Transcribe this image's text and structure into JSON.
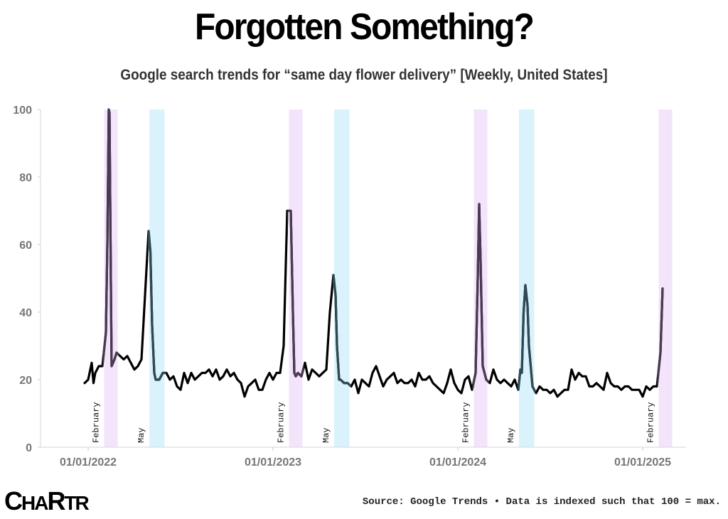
{
  "header": {
    "title": "Forgotten Something?",
    "subtitle": "Google search trends for “same day flower delivery” [Weekly, United States]"
  },
  "footer": {
    "logo_big_a": "C",
    "logo_mid": "HA",
    "logo_big_b": "R",
    "logo_end": "TR",
    "source": "Source: Google Trends • Data is indexed such that 100 = max."
  },
  "colors": {
    "line": "#000000",
    "valentine_band": "#f3e3fb",
    "mothers_day_band": "#d9f2fb",
    "valentine_line": "#4a3a52",
    "mothers_day_line": "#2f4a55",
    "axis_text": "#777777"
  },
  "chart_data": {
    "type": "line",
    "ylim": [
      0,
      100
    ],
    "yticks": [
      0,
      20,
      40,
      60,
      80,
      100
    ],
    "xticks": [
      {
        "label": "01/01/2022",
        "week": 0
      },
      {
        "label": "01/01/2023",
        "week": 52
      },
      {
        "label": "01/01/2024",
        "week": 104
      },
      {
        "label": "01/01/2025",
        "week": 156
      }
    ],
    "bands": [
      {
        "label": "February",
        "type": "valentine",
        "start_week": 4.5,
        "end_week": 8.3
      },
      {
        "label": "May",
        "type": "mothers_day",
        "start_week": 17.2,
        "end_week": 21.5
      },
      {
        "label": "February",
        "type": "valentine",
        "start_week": 56.5,
        "end_week": 60.3
      },
      {
        "label": "May",
        "type": "mothers_day",
        "start_week": 69.2,
        "end_week": 73.5
      },
      {
        "label": "February",
        "type": "valentine",
        "start_week": 108.5,
        "end_week": 112.3
      },
      {
        "label": "May",
        "type": "mothers_day",
        "start_week": 121.2,
        "end_week": 125.5
      },
      {
        "label": "February",
        "type": "valentine",
        "start_week": 160.5,
        "end_week": 164.3
      }
    ],
    "series": [
      {
        "x": [
          -1,
          0,
          1,
          1.5,
          2,
          3,
          4,
          5,
          5.4,
          5.8,
          6,
          6.3,
          6.6,
          7,
          7.4,
          8,
          9,
          10,
          11,
          12,
          13,
          14,
          15,
          16,
          17,
          17.5,
          18,
          18.6,
          19,
          19.5,
          20,
          21,
          22,
          23,
          24,
          25,
          26,
          27,
          28,
          29,
          30,
          31,
          32,
          33,
          34,
          35,
          36,
          37,
          38,
          39,
          40,
          41,
          42,
          43,
          44,
          45,
          46,
          47,
          48,
          49,
          50,
          51,
          52,
          53,
          54,
          55,
          56,
          57,
          57.6,
          58,
          58.4,
          59,
          60,
          61,
          62,
          63,
          64,
          65,
          66,
          67,
          68,
          69,
          69.6,
          70,
          70.6,
          71,
          72,
          73,
          74,
          75,
          76,
          77,
          78,
          79,
          80,
          81,
          82,
          83,
          84,
          85,
          86,
          87,
          88,
          89,
          90,
          91,
          92,
          93,
          94,
          95,
          96,
          97,
          98,
          99,
          100,
          101,
          102,
          103,
          104,
          105,
          106,
          107,
          108,
          109,
          109.6,
          110,
          110.4,
          111,
          112,
          113,
          114,
          115,
          116,
          117,
          118,
          119,
          120,
          121,
          121.6,
          122,
          122.5,
          123,
          123.6,
          124,
          125,
          126,
          127,
          128,
          129,
          130,
          131,
          132,
          133,
          134,
          135,
          136,
          137,
          138,
          139,
          140,
          141,
          142,
          143,
          144,
          145,
          146,
          147,
          148,
          149,
          150,
          151,
          152,
          153,
          154,
          155,
          156,
          157,
          158,
          159,
          160,
          161,
          161.6
        ],
        "values": [
          19,
          20,
          25,
          19,
          22,
          24,
          24,
          34,
          60,
          100,
          99,
          60,
          24,
          25,
          26,
          28,
          27,
          26,
          27,
          25,
          23,
          24,
          26,
          45,
          64,
          58,
          36,
          22,
          20,
          20,
          20,
          22,
          22,
          20,
          21,
          18,
          17,
          22,
          19,
          22,
          20,
          21,
          22,
          22,
          23,
          21,
          23,
          20,
          21,
          23,
          21,
          22,
          20,
          19,
          15,
          18,
          19,
          20,
          17,
          17,
          20,
          22,
          20,
          22,
          22,
          30,
          70,
          70,
          40,
          22,
          21,
          22,
          21,
          25,
          20,
          23,
          22,
          21,
          22,
          23,
          40,
          51,
          45,
          30,
          20,
          20,
          19,
          19,
          18,
          20,
          16,
          20,
          19,
          18,
          22,
          24,
          21,
          18,
          20,
          21,
          22,
          19,
          20,
          19,
          19,
          20,
          18,
          22,
          20,
          20,
          21,
          19,
          18,
          17,
          16,
          19,
          23,
          19,
          17,
          16,
          20,
          21,
          17,
          22,
          50,
          72,
          55,
          24,
          20,
          19,
          23,
          20,
          19,
          20,
          19,
          18,
          20,
          17,
          23,
          22,
          40,
          48,
          42,
          30,
          18,
          16,
          18,
          17,
          17,
          16,
          17,
          15,
          16,
          17,
          17,
          23,
          20,
          22,
          21,
          21,
          18,
          18,
          19,
          18,
          17,
          22,
          19,
          18,
          18,
          17,
          18,
          18,
          17,
          17,
          17,
          15,
          18,
          17,
          18,
          18,
          28,
          47
        ]
      }
    ]
  }
}
